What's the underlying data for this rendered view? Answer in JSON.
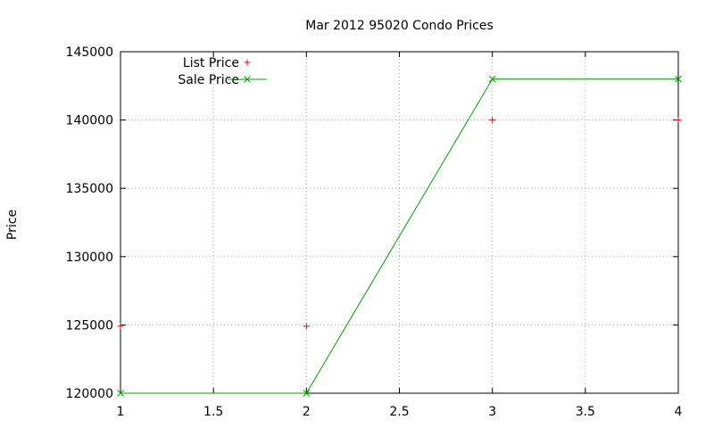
{
  "chart_data": {
    "type": "line",
    "title": "Mar 2012 95020 Condo Prices",
    "xlabel": "",
    "ylabel": "Price",
    "xlim": [
      1,
      4
    ],
    "ylim": [
      120000,
      145000
    ],
    "x_ticks": [
      "1",
      "1.5",
      "2",
      "2.5",
      "3",
      "3.5",
      "4"
    ],
    "y_ticks": [
      "120000",
      "125000",
      "130000",
      "135000",
      "140000",
      "145000"
    ],
    "grid": true,
    "legend_position": "top-left",
    "series": [
      {
        "name": "List Price",
        "style": "points",
        "marker": "plus",
        "color": "#ff0000",
        "x": [
          1,
          2,
          3,
          4
        ],
        "y": [
          124900,
          124900,
          140000,
          140000
        ]
      },
      {
        "name": "Sale Price",
        "style": "linespoints",
        "marker": "cross",
        "color": "#00a000",
        "x": [
          1,
          2,
          3,
          4
        ],
        "y": [
          120000,
          120000,
          143000,
          143000
        ]
      }
    ]
  }
}
